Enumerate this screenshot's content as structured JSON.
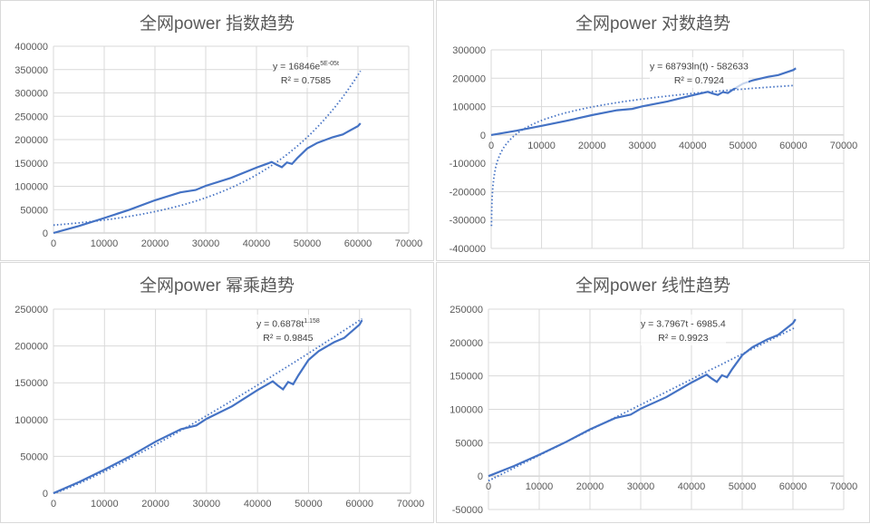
{
  "chart_data": [
    {
      "type": "line",
      "title": "全网power 指数趋势",
      "xlim": [
        0,
        70000
      ],
      "xticks": [
        0,
        10000,
        20000,
        30000,
        40000,
        50000,
        60000,
        70000
      ],
      "ylim": [
        0,
        400000
      ],
      "yticks": [
        0,
        50000,
        100000,
        150000,
        200000,
        250000,
        300000,
        350000,
        400000
      ],
      "grid": true,
      "trendline": {
        "kind": "exponential",
        "a": 16846,
        "b": 5e-05,
        "equation": "y = 16846e",
        "equation_sup": "5E-05t",
        "r2": "R² = 0.7585"
      }
    },
    {
      "type": "line",
      "title": "全网power 对数趋势",
      "xlim": [
        0,
        70000
      ],
      "xticks": [
        0,
        10000,
        20000,
        30000,
        40000,
        50000,
        60000,
        70000
      ],
      "ylim": [
        -400000,
        300000
      ],
      "yticks": [
        -400000,
        -300000,
        -200000,
        -100000,
        0,
        100000,
        200000,
        300000
      ],
      "grid": true,
      "trendline": {
        "kind": "logarithmic",
        "a": 68793,
        "b": -582633,
        "equation": "y = 68793ln(t) - 582633",
        "equation_sup": "",
        "r2": "R² = 0.7924"
      }
    },
    {
      "type": "line",
      "title": "全网power 幂乘趋势",
      "xlim": [
        0,
        70000
      ],
      "xticks": [
        0,
        10000,
        20000,
        30000,
        40000,
        50000,
        60000,
        70000
      ],
      "ylim": [
        0,
        250000
      ],
      "yticks": [
        0,
        50000,
        100000,
        150000,
        200000,
        250000
      ],
      "grid": true,
      "trendline": {
        "kind": "power",
        "a": 0.6878,
        "b": 1.158,
        "equation": "y = 0.6878t",
        "equation_sup": "1.158",
        "r2": "R² = 0.9845"
      }
    },
    {
      "type": "line",
      "title": "全网power 线性趋势",
      "xlim": [
        0,
        70000
      ],
      "xticks": [
        0,
        10000,
        20000,
        30000,
        40000,
        50000,
        60000,
        70000
      ],
      "ylim": [
        -50000,
        250000
      ],
      "yticks": [
        -50000,
        0,
        50000,
        100000,
        150000,
        200000,
        250000
      ],
      "grid": true,
      "trendline": {
        "kind": "linear",
        "a": 3.7967,
        "b": -6985.4,
        "equation": "y = 3.7967t - 6985.4",
        "equation_sup": "",
        "r2": "R² = 0.9923"
      }
    }
  ],
  "series": {
    "x": [
      0,
      5000,
      10000,
      15000,
      20000,
      25000,
      28000,
      30000,
      35000,
      40000,
      42000,
      43000,
      44000,
      45000,
      46000,
      47000,
      48000,
      50000,
      52000,
      55000,
      57000,
      60000,
      60500
    ],
    "y": [
      0,
      15000,
      32000,
      50000,
      70000,
      87000,
      92000,
      101000,
      118000,
      140000,
      148000,
      152000,
      146000,
      141000,
      151000,
      148000,
      160000,
      181000,
      193000,
      205000,
      211000,
      229000,
      235000
    ]
  },
  "colors": {
    "series": "#4472c4",
    "trend": "#4472c4",
    "grid": "#d9d9d9",
    "axis_text": "#595959"
  }
}
